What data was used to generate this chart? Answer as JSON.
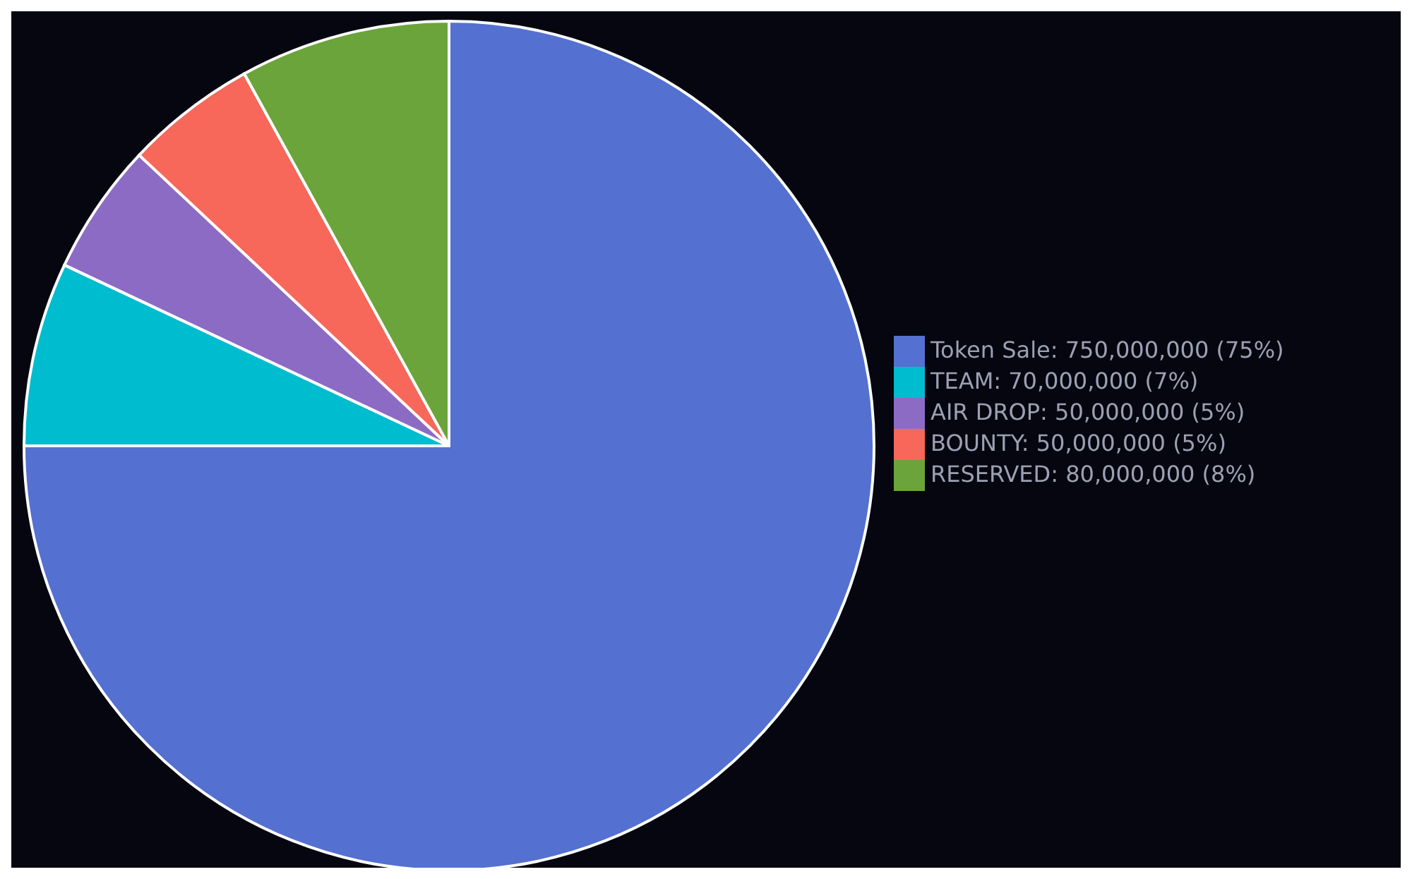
{
  "chart_data": {
    "type": "pie",
    "categories": [
      "Token Sale: 750,000,000 (75%)",
      "TEAM: 70,000,000 (7%)",
      "AIR DROP: 50,000,000 (5%)",
      "BOUNTY: 50,000,000 (5%)",
      "RESERVED: 80,000,000 (8%)"
    ],
    "values": [
      750000000,
      70000000,
      50000000,
      50000000,
      80000000
    ],
    "colors": [
      "#5470d0",
      "#00bccf",
      "#8c6bc4",
      "#f7675a",
      "#6aa43a"
    ],
    "legend": "right"
  }
}
